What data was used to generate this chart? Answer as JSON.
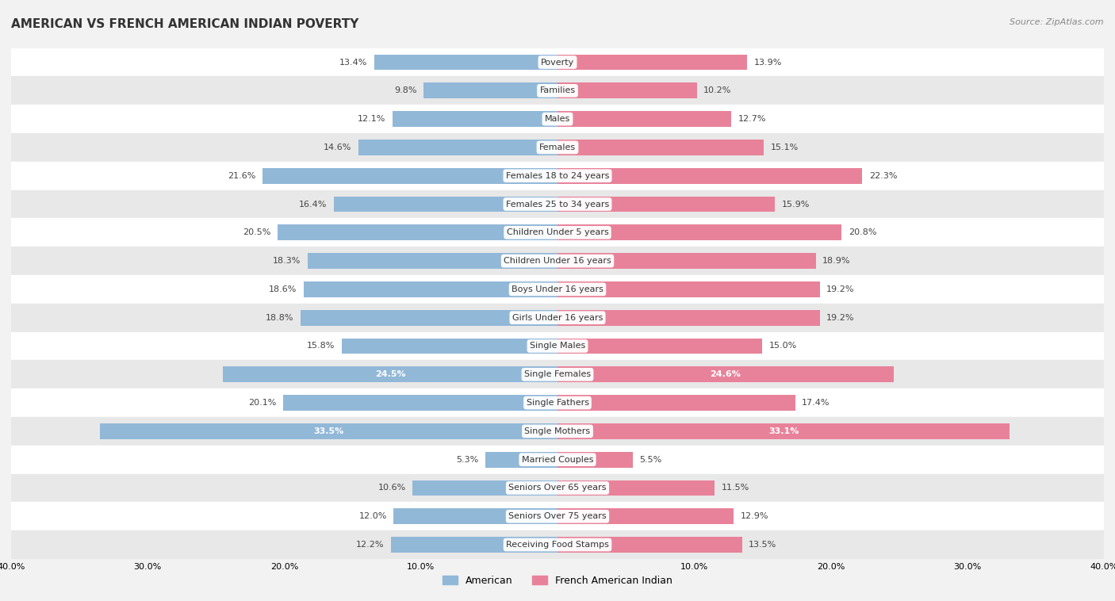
{
  "title": "AMERICAN VS FRENCH AMERICAN INDIAN POVERTY",
  "source": "Source: ZipAtlas.com",
  "categories": [
    "Poverty",
    "Families",
    "Males",
    "Females",
    "Females 18 to 24 years",
    "Females 25 to 34 years",
    "Children Under 5 years",
    "Children Under 16 years",
    "Boys Under 16 years",
    "Girls Under 16 years",
    "Single Males",
    "Single Females",
    "Single Fathers",
    "Single Mothers",
    "Married Couples",
    "Seniors Over 65 years",
    "Seniors Over 75 years",
    "Receiving Food Stamps"
  ],
  "american_values": [
    13.4,
    9.8,
    12.1,
    14.6,
    21.6,
    16.4,
    20.5,
    18.3,
    18.6,
    18.8,
    15.8,
    24.5,
    20.1,
    33.5,
    5.3,
    10.6,
    12.0,
    12.2
  ],
  "french_values": [
    13.9,
    10.2,
    12.7,
    15.1,
    22.3,
    15.9,
    20.8,
    18.9,
    19.2,
    19.2,
    15.0,
    24.6,
    17.4,
    33.1,
    5.5,
    11.5,
    12.9,
    13.5
  ],
  "american_color": "#92b8d8",
  "french_color": "#e8829a",
  "background_color": "#f2f2f2",
  "row_light": "#ffffff",
  "row_dark": "#e8e8e8",
  "xlim": 40.0,
  "bar_height": 0.55,
  "title_fontsize": 11,
  "source_fontsize": 8,
  "label_fontsize": 8,
  "value_fontsize": 8,
  "legend_fontsize": 9,
  "axis_fontsize": 8,
  "inside_label_threshold": 24.0
}
